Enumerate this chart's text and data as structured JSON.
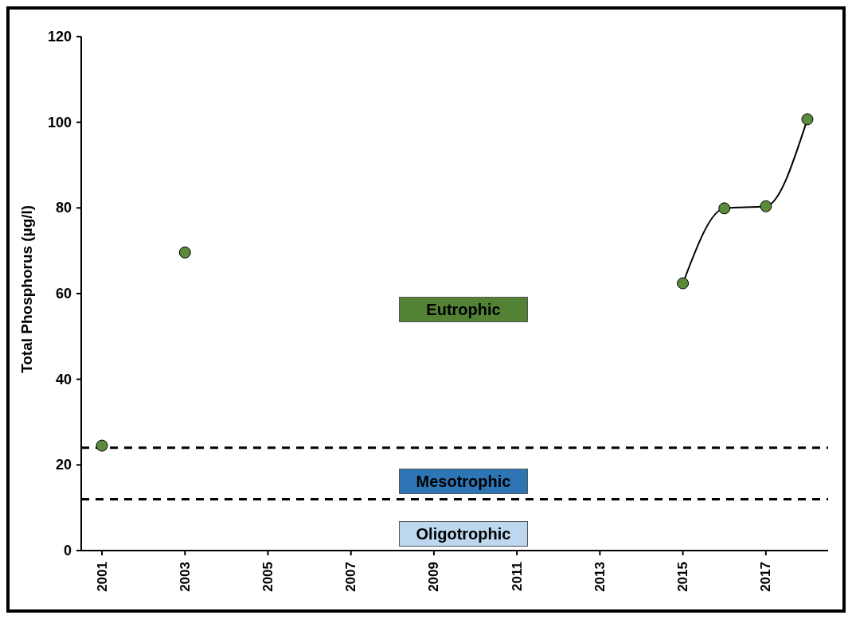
{
  "chart_data": {
    "type": "line",
    "ylabel": "Total Phosphorus (µg/l)",
    "series": [
      {
        "type": "scatter",
        "color": "#5a8a3a",
        "x": [
          2001,
          2003
        ],
        "values": [
          24.5,
          69.6
        ]
      },
      {
        "type": "line",
        "color": "#5a8a3a",
        "x": [
          2015,
          2016,
          2017,
          2018
        ],
        "values": [
          62.4,
          79.9,
          80.4,
          100.7
        ]
      }
    ],
    "xlim": [
      2000.5,
      2018.5
    ],
    "xticks": [
      2001,
      2003,
      2005,
      2007,
      2009,
      2011,
      2013,
      2015,
      2017
    ],
    "ylim": [
      0,
      120
    ],
    "yticks": [
      0,
      20,
      40,
      60,
      80,
      100,
      120
    ],
    "ref_lines": [
      {
        "axis": "y",
        "value": 24,
        "line_style": "dashed",
        "color": "#000000"
      },
      {
        "axis": "y",
        "value": 12,
        "line_style": "dashed",
        "color": "#000000"
      }
    ],
    "annotations": [
      "Eutrophic",
      "Mesotrophic",
      "Oligotrophic"
    ],
    "grid": false,
    "legend": false,
    "marker": "circle",
    "line_style": "solid"
  }
}
